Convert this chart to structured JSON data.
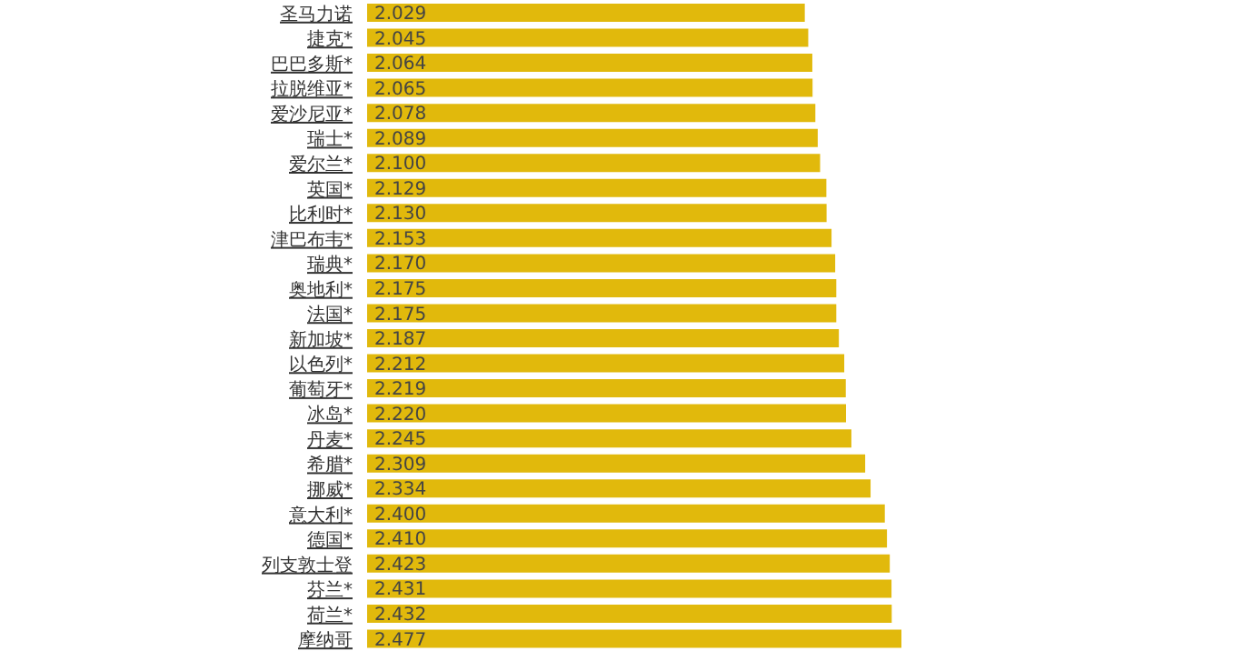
{
  "chart_data": {
    "type": "bar",
    "orientation": "horizontal",
    "categories": [
      "圣马力诺",
      "捷克*",
      "巴巴多斯*",
      "拉脱维亚*",
      "爱沙尼亚*",
      "瑞士*",
      "爱尔兰*",
      "英国*",
      "比利时*",
      "津巴布韦*",
      "瑞典*",
      "奥地利*",
      "法国*",
      "新加坡*",
      "以色列*",
      "葡萄牙*",
      "冰岛*",
      "丹麦*",
      "希腊*",
      "挪威*",
      "意大利*",
      "德国*",
      "列支敦士登",
      "芬兰*",
      "荷兰*",
      "摩纳哥"
    ],
    "values": [
      2.029,
      2.045,
      2.064,
      2.065,
      2.078,
      2.089,
      2.1,
      2.129,
      2.13,
      2.153,
      2.17,
      2.175,
      2.175,
      2.187,
      2.212,
      2.219,
      2.22,
      2.245,
      2.309,
      2.334,
      2.4,
      2.41,
      2.423,
      2.431,
      2.432,
      2.477
    ],
    "value_labels": [
      "2.029",
      "2.045",
      "2.064",
      "2.065",
      "2.078",
      "2.089",
      "2.100",
      "2.129",
      "2.130",
      "2.153",
      "2.170",
      "2.175",
      "2.175",
      "2.187",
      "2.212",
      "2.219",
      "2.220",
      "2.245",
      "2.309",
      "2.334",
      "2.400",
      "2.410",
      "2.423",
      "2.431",
      "2.432",
      "2.477"
    ],
    "color": "#e1b90c"
  }
}
